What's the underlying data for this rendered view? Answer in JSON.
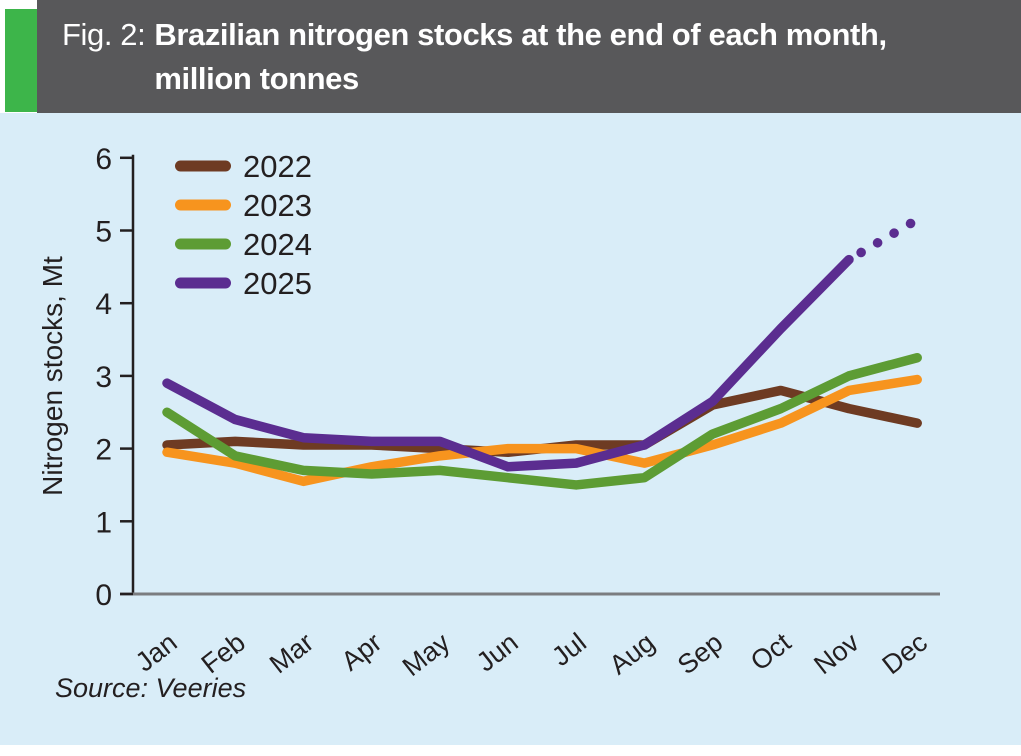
{
  "figure": {
    "label_prefix": "Fig. 2:",
    "title_line1": "Brazilian nitrogen stocks at the end of each month,",
    "title_line2": "million tonnes",
    "source": "Source: Veeries"
  },
  "colors": {
    "header_bg": "#58585a",
    "accent_bar": "#3db54a",
    "chart_bg": "#d9edf8",
    "y_axis": "#231f20",
    "x_axis": "#7b7d80",
    "text": "#231f20"
  },
  "chart_data": {
    "type": "line",
    "title": "Brazilian nitrogen stocks at the end of each month, million tonnes",
    "xlabel": "",
    "ylabel": "Nitrogen stocks, Mt",
    "ylim": [
      0,
      6
    ],
    "yticks": [
      0,
      1,
      2,
      3,
      4,
      5,
      6
    ],
    "grid": false,
    "legend_position": "top-left",
    "categories": [
      "Jan",
      "Feb",
      "Mar",
      "Apr",
      "May",
      "Jun",
      "Jul",
      "Aug",
      "Sep",
      "Oct",
      "Nov",
      "Dec"
    ],
    "series": [
      {
        "name": "2022",
        "color": "#6e3b23",
        "values": [
          2.05,
          2.1,
          2.05,
          2.05,
          2.0,
          1.95,
          2.05,
          2.05,
          2.6,
          2.8,
          2.55,
          2.35
        ]
      },
      {
        "name": "2023",
        "color": "#f7941e",
        "values": [
          1.95,
          1.8,
          1.55,
          1.75,
          1.9,
          2.0,
          2.0,
          1.8,
          2.05,
          2.35,
          2.8,
          2.95
        ]
      },
      {
        "name": "2024",
        "color": "#5d9c34",
        "values": [
          2.5,
          1.9,
          1.7,
          1.65,
          1.7,
          1.6,
          1.5,
          1.6,
          2.2,
          2.55,
          3.0,
          3.25
        ]
      },
      {
        "name": "2025",
        "color": "#5b2d90",
        "values": [
          2.9,
          2.4,
          2.15,
          2.1,
          2.1,
          1.75,
          1.8,
          2.05,
          2.65,
          3.65,
          4.6,
          5.15
        ],
        "dotted_from_index": 10,
        "note": "final segment drawn as dots (projection)"
      }
    ]
  }
}
